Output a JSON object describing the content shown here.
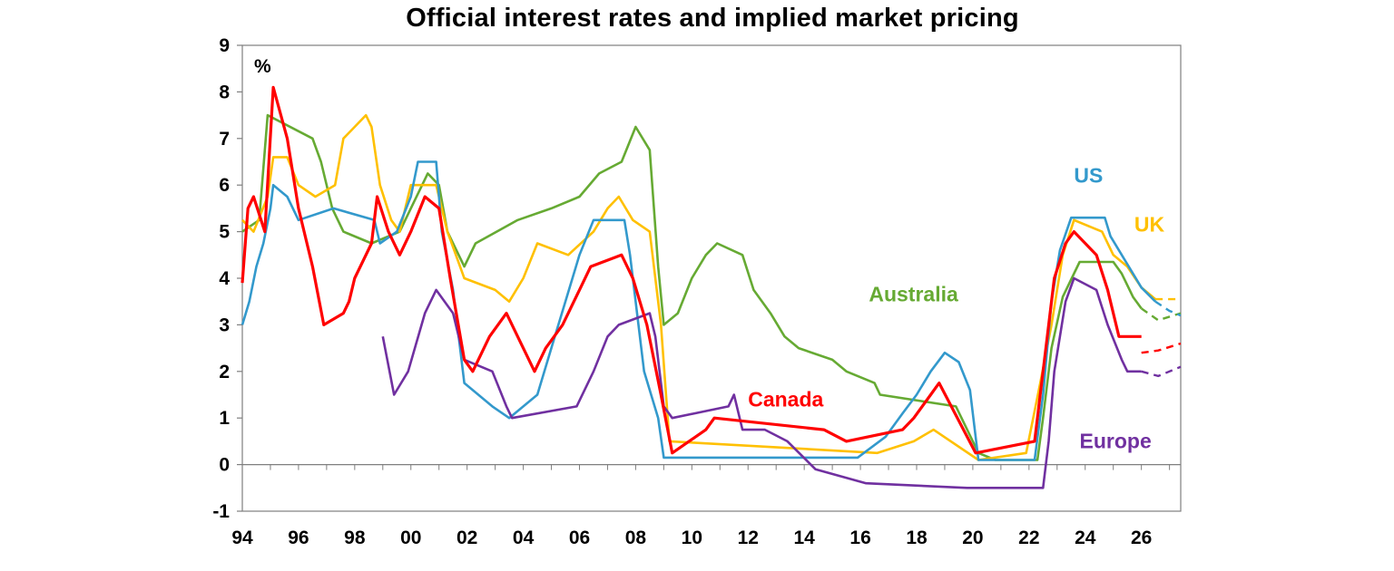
{
  "chart_data": {
    "type": "line",
    "title": "Official interest rates and implied market pricing",
    "ylabel": "%",
    "xlabel": "",
    "ylim": [
      -1,
      9
    ],
    "xlim": [
      1994,
      2027.4
    ],
    "yticks": [
      "-1",
      "0",
      "1",
      "2",
      "3",
      "4",
      "5",
      "6",
      "7",
      "8",
      "9"
    ],
    "xticks": [
      "94",
      "96",
      "98",
      "00",
      "02",
      "04",
      "06",
      "08",
      "10",
      "12",
      "14",
      "16",
      "18",
      "20",
      "22",
      "24",
      "26"
    ],
    "grid": false,
    "series": [
      {
        "name": "US",
        "color": "#3399CC",
        "values": [
          [
            1994.0,
            3.0
          ],
          [
            1994.25,
            3.5
          ],
          [
            1994.5,
            4.25
          ],
          [
            1994.75,
            4.75
          ],
          [
            1995.0,
            5.5
          ],
          [
            1995.1,
            6.0
          ],
          [
            1995.6,
            5.75
          ],
          [
            1996.0,
            5.25
          ],
          [
            1997.25,
            5.5
          ],
          [
            1998.7,
            5.25
          ],
          [
            1998.9,
            4.75
          ],
          [
            1999.5,
            5.0
          ],
          [
            2000.0,
            5.75
          ],
          [
            2000.25,
            6.5
          ],
          [
            2000.9,
            6.5
          ],
          [
            2001.1,
            5.0
          ],
          [
            2001.5,
            3.75
          ],
          [
            2001.9,
            1.75
          ],
          [
            2002.9,
            1.25
          ],
          [
            2003.5,
            1.0
          ],
          [
            2004.5,
            1.5
          ],
          [
            2005.0,
            2.5
          ],
          [
            2005.5,
            3.5
          ],
          [
            2006.0,
            4.5
          ],
          [
            2006.5,
            5.25
          ],
          [
            2007.6,
            5.25
          ],
          [
            2007.8,
            4.5
          ],
          [
            2008.1,
            3.0
          ],
          [
            2008.3,
            2.0
          ],
          [
            2008.8,
            1.0
          ],
          [
            2009.0,
            0.15
          ],
          [
            2015.9,
            0.15
          ],
          [
            2016.9,
            0.6
          ],
          [
            2017.5,
            1.1
          ],
          [
            2018.0,
            1.5
          ],
          [
            2018.5,
            2.0
          ],
          [
            2019.0,
            2.4
          ],
          [
            2019.5,
            2.2
          ],
          [
            2019.9,
            1.6
          ],
          [
            2020.2,
            0.1
          ],
          [
            2022.2,
            0.1
          ],
          [
            2022.5,
            1.5
          ],
          [
            2022.8,
            3.5
          ],
          [
            2023.1,
            4.6
          ],
          [
            2023.5,
            5.3
          ],
          [
            2024.7,
            5.3
          ],
          [
            2024.9,
            4.9
          ],
          [
            2025.5,
            4.3
          ],
          [
            2026.0,
            3.8
          ],
          [
            2026.5,
            3.5
          ]
        ],
        "projection": [
          [
            2026.5,
            3.5
          ],
          [
            2027.0,
            3.3
          ],
          [
            2027.4,
            3.2
          ]
        ]
      },
      {
        "name": "UK",
        "color": "#FFC000",
        "values": [
          [
            1994.0,
            5.25
          ],
          [
            1994.4,
            5.0
          ],
          [
            1994.9,
            5.75
          ],
          [
            1995.1,
            6.6
          ],
          [
            1995.6,
            6.6
          ],
          [
            1996.0,
            6.0
          ],
          [
            1996.6,
            5.75
          ],
          [
            1997.3,
            6.0
          ],
          [
            1997.6,
            7.0
          ],
          [
            1998.0,
            7.25
          ],
          [
            1998.4,
            7.5
          ],
          [
            1998.6,
            7.25
          ],
          [
            1998.9,
            6.0
          ],
          [
            1999.3,
            5.25
          ],
          [
            1999.6,
            5.0
          ],
          [
            2000.0,
            6.0
          ],
          [
            2000.9,
            6.0
          ],
          [
            2001.3,
            5.0
          ],
          [
            2001.9,
            4.0
          ],
          [
            2003.0,
            3.75
          ],
          [
            2003.5,
            3.5
          ],
          [
            2004.0,
            4.0
          ],
          [
            2004.5,
            4.75
          ],
          [
            2005.6,
            4.5
          ],
          [
            2006.5,
            5.0
          ],
          [
            2007.0,
            5.5
          ],
          [
            2007.4,
            5.75
          ],
          [
            2007.9,
            5.25
          ],
          [
            2008.5,
            5.0
          ],
          [
            2008.9,
            3.0
          ],
          [
            2009.2,
            0.5
          ],
          [
            2016.6,
            0.25
          ],
          [
            2017.9,
            0.5
          ],
          [
            2018.6,
            0.75
          ],
          [
            2020.2,
            0.1
          ],
          [
            2021.9,
            0.25
          ],
          [
            2022.4,
            1.75
          ],
          [
            2022.8,
            3.0
          ],
          [
            2023.2,
            4.5
          ],
          [
            2023.6,
            5.25
          ],
          [
            2024.6,
            5.0
          ],
          [
            2025.0,
            4.5
          ],
          [
            2025.5,
            4.25
          ],
          [
            2026.0,
            3.8
          ],
          [
            2026.5,
            3.55
          ]
        ],
        "projection": [
          [
            2026.5,
            3.55
          ],
          [
            2027.4,
            3.55
          ]
        ]
      },
      {
        "name": "Australia",
        "color": "#66AA33",
        "values": [
          [
            1994.0,
            5.0
          ],
          [
            1994.6,
            5.25
          ],
          [
            1994.9,
            7.5
          ],
          [
            1996.5,
            7.0
          ],
          [
            1996.8,
            6.5
          ],
          [
            1997.2,
            5.5
          ],
          [
            1997.6,
            5.0
          ],
          [
            1998.6,
            4.75
          ],
          [
            1999.6,
            5.0
          ],
          [
            2000.0,
            5.5
          ],
          [
            2000.6,
            6.25
          ],
          [
            2001.0,
            6.0
          ],
          [
            2001.3,
            5.0
          ],
          [
            2001.9,
            4.25
          ],
          [
            2002.3,
            4.75
          ],
          [
            2003.8,
            5.25
          ],
          [
            2005.0,
            5.5
          ],
          [
            2006.0,
            5.75
          ],
          [
            2006.7,
            6.25
          ],
          [
            2007.5,
            6.5
          ],
          [
            2008.0,
            7.25
          ],
          [
            2008.5,
            6.75
          ],
          [
            2008.8,
            4.25
          ],
          [
            2009.0,
            3.0
          ],
          [
            2009.5,
            3.25
          ],
          [
            2010.0,
            4.0
          ],
          [
            2010.5,
            4.5
          ],
          [
            2010.9,
            4.75
          ],
          [
            2011.8,
            4.5
          ],
          [
            2012.2,
            3.75
          ],
          [
            2012.8,
            3.25
          ],
          [
            2013.3,
            2.75
          ],
          [
            2013.8,
            2.5
          ],
          [
            2015.0,
            2.25
          ],
          [
            2015.5,
            2.0
          ],
          [
            2016.5,
            1.75
          ],
          [
            2016.7,
            1.5
          ],
          [
            2019.4,
            1.25
          ],
          [
            2019.8,
            0.75
          ],
          [
            2020.2,
            0.25
          ],
          [
            2020.8,
            0.1
          ],
          [
            2022.3,
            0.1
          ],
          [
            2022.5,
            1.0
          ],
          [
            2022.8,
            2.5
          ],
          [
            2023.2,
            3.6
          ],
          [
            2023.8,
            4.35
          ],
          [
            2025.0,
            4.35
          ],
          [
            2025.3,
            4.1
          ],
          [
            2025.7,
            3.6
          ],
          [
            2026.0,
            3.35
          ]
        ],
        "projection": [
          [
            2026.0,
            3.35
          ],
          [
            2026.6,
            3.1
          ],
          [
            2027.4,
            3.25
          ]
        ]
      },
      {
        "name": "Canada",
        "color": "#FF0000",
        "values": [
          [
            1994.0,
            3.9
          ],
          [
            1994.2,
            5.5
          ],
          [
            1994.4,
            5.75
          ],
          [
            1994.8,
            5.0
          ],
          [
            1995.1,
            8.1
          ],
          [
            1995.6,
            7.0
          ],
          [
            1996.0,
            5.5
          ],
          [
            1996.5,
            4.25
          ],
          [
            1996.9,
            3.0
          ],
          [
            1997.6,
            3.25
          ],
          [
            1997.8,
            3.5
          ],
          [
            1998.0,
            4.0
          ],
          [
            1998.6,
            4.75
          ],
          [
            1998.8,
            5.75
          ],
          [
            1999.2,
            5.0
          ],
          [
            1999.6,
            4.5
          ],
          [
            2000.0,
            5.0
          ],
          [
            2000.5,
            5.75
          ],
          [
            2001.0,
            5.5
          ],
          [
            2001.4,
            4.0
          ],
          [
            2001.9,
            2.25
          ],
          [
            2002.2,
            2.0
          ],
          [
            2002.8,
            2.75
          ],
          [
            2003.4,
            3.25
          ],
          [
            2003.8,
            2.75
          ],
          [
            2004.4,
            2.0
          ],
          [
            2004.8,
            2.5
          ],
          [
            2005.4,
            3.0
          ],
          [
            2006.0,
            3.75
          ],
          [
            2006.4,
            4.25
          ],
          [
            2007.5,
            4.5
          ],
          [
            2007.9,
            4.0
          ],
          [
            2008.4,
            3.0
          ],
          [
            2008.9,
            1.5
          ],
          [
            2009.3,
            0.25
          ],
          [
            2010.5,
            0.75
          ],
          [
            2010.8,
            1.0
          ],
          [
            2014.7,
            0.75
          ],
          [
            2015.5,
            0.5
          ],
          [
            2017.5,
            0.75
          ],
          [
            2017.9,
            1.0
          ],
          [
            2018.5,
            1.5
          ],
          [
            2018.8,
            1.75
          ],
          [
            2020.1,
            0.25
          ],
          [
            2022.2,
            0.5
          ],
          [
            2022.6,
            2.5
          ],
          [
            2022.9,
            4.0
          ],
          [
            2023.3,
            4.75
          ],
          [
            2023.6,
            5.0
          ],
          [
            2024.4,
            4.5
          ],
          [
            2024.8,
            3.75
          ],
          [
            2025.2,
            2.75
          ],
          [
            2026.0,
            2.75
          ]
        ],
        "projection": [
          [
            2026.0,
            2.4
          ],
          [
            2026.6,
            2.45
          ],
          [
            2027.4,
            2.6
          ]
        ]
      },
      {
        "name": "Europe",
        "color": "#7030A0",
        "values": [
          [
            1999.0,
            2.75
          ],
          [
            1999.4,
            1.5
          ],
          [
            1999.9,
            2.0
          ],
          [
            2000.5,
            3.25
          ],
          [
            2000.9,
            3.75
          ],
          [
            2001.5,
            3.25
          ],
          [
            2001.9,
            2.25
          ],
          [
            2002.9,
            2.0
          ],
          [
            2003.4,
            1.25
          ],
          [
            2003.6,
            1.0
          ],
          [
            2005.9,
            1.25
          ],
          [
            2006.5,
            2.0
          ],
          [
            2007.0,
            2.75
          ],
          [
            2007.4,
            3.0
          ],
          [
            2008.5,
            3.25
          ],
          [
            2008.7,
            2.75
          ],
          [
            2009.0,
            1.25
          ],
          [
            2009.3,
            1.0
          ],
          [
            2011.3,
            1.25
          ],
          [
            2011.5,
            1.5
          ],
          [
            2011.8,
            0.75
          ],
          [
            2012.6,
            0.75
          ],
          [
            2013.4,
            0.5
          ],
          [
            2014.4,
            -0.1
          ],
          [
            2016.2,
            -0.4
          ],
          [
            2019.8,
            -0.5
          ],
          [
            2022.5,
            -0.5
          ],
          [
            2022.7,
            0.5
          ],
          [
            2022.9,
            2.0
          ],
          [
            2023.3,
            3.5
          ],
          [
            2023.6,
            4.0
          ],
          [
            2024.4,
            3.75
          ],
          [
            2024.8,
            3.0
          ],
          [
            2025.3,
            2.25
          ],
          [
            2025.5,
            2.0
          ],
          [
            2026.0,
            2.0
          ]
        ],
        "projection": [
          [
            2026.0,
            2.0
          ],
          [
            2026.6,
            1.9
          ],
          [
            2027.4,
            2.1
          ]
        ]
      }
    ],
    "series_labels": [
      {
        "name": "US",
        "text": "US",
        "color": "#3399CC",
        "at": [
          2023.6,
          6.05
        ]
      },
      {
        "name": "UK",
        "text": "UK",
        "color": "#FFC000",
        "at": [
          2025.75,
          5.0
        ]
      },
      {
        "name": "Australia",
        "text": "Australia",
        "color": "#66AA33",
        "at": [
          2016.3,
          3.5
        ]
      },
      {
        "name": "Canada",
        "text": "Canada",
        "color": "#FF0000",
        "at": [
          2012.0,
          1.25
        ]
      },
      {
        "name": "Europe",
        "text": "Europe",
        "color": "#7030A0",
        "at": [
          2023.8,
          0.35
        ]
      }
    ]
  }
}
